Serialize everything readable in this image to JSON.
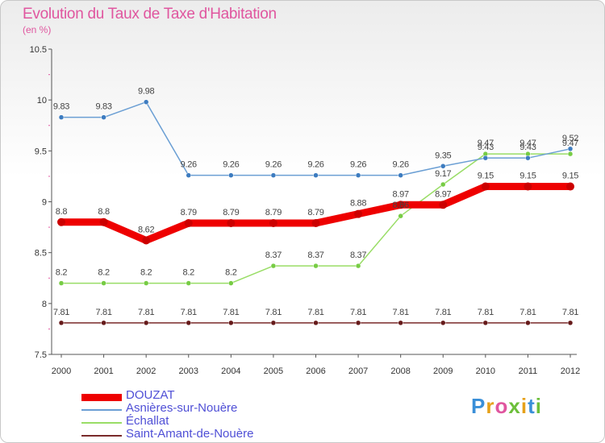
{
  "title": "Evolution du Taux de Taxe d'Habitation",
  "subtitle": "(en %)",
  "brand": "Proxiti",
  "colors": {
    "title": "#e0569f",
    "legend_text": "#4f4fd6"
  },
  "chart_data": {
    "type": "line",
    "x": [
      "2000",
      "2001",
      "2002",
      "2003",
      "2004",
      "2005",
      "2006",
      "2007",
      "2008",
      "2009",
      "2010",
      "2011",
      "2012"
    ],
    "ylim": [
      7.5,
      10.5
    ],
    "yticks": [
      "7.5",
      "8",
      "8.5",
      "9",
      "9.5",
      "10",
      "10.5"
    ],
    "grid": false,
    "legend_position": "bottom-left",
    "series": [
      {
        "name": "DOUZAT",
        "color": "#ee0000",
        "point_color": "#cc0000",
        "values": [
          8.8,
          8.8,
          8.62,
          8.79,
          8.79,
          8.79,
          8.79,
          8.88,
          8.97,
          8.97,
          9.15,
          9.15,
          9.15
        ],
        "labels": [
          "8.8",
          "8.8",
          "8.62",
          "8.79",
          "8.79",
          "8.79",
          "8.79",
          "8.88",
          "8.97",
          "8.97",
          "9.15",
          "9.15",
          "9.15"
        ]
      },
      {
        "name": "Asnières-sur-Nouère",
        "color": "#6b9fd4",
        "point_color": "#3d7cc0",
        "values": [
          9.83,
          9.83,
          9.98,
          9.26,
          9.26,
          9.26,
          9.26,
          9.26,
          9.26,
          9.35,
          9.43,
          9.43,
          9.52
        ],
        "labels": [
          "9.83",
          "9.83",
          "9.98",
          "9.26",
          "9.26",
          "9.26",
          "9.26",
          "9.26",
          "9.26",
          "9.35",
          "9.43",
          "9.43",
          "9.52"
        ]
      },
      {
        "name": "Échallat",
        "color": "#99dd66",
        "point_color": "#77cc44",
        "values": [
          8.2,
          8.2,
          8.2,
          8.2,
          8.2,
          8.37,
          8.37,
          8.37,
          8.86,
          9.17,
          9.47,
          9.47,
          9.47
        ],
        "labels": [
          "8.2",
          "8.2",
          "8.2",
          "8.2",
          "8.2",
          "8.37",
          "8.37",
          "8.37",
          "8.86",
          "9.17",
          "9.47",
          "9.47",
          "9.47"
        ]
      },
      {
        "name": "Saint-Amant-de-Nouère",
        "color": "#7a2a2a",
        "point_color": "#661a1a",
        "values": [
          7.81,
          7.81,
          7.81,
          7.81,
          7.81,
          7.81,
          7.81,
          7.81,
          7.81,
          7.81,
          7.81,
          7.81,
          7.81
        ],
        "labels": [
          "7.81",
          "7.81",
          "7.81",
          "7.81",
          "7.81",
          "7.81",
          "7.81",
          "7.81",
          "7.81",
          "7.81",
          "7.81",
          "7.81",
          "7.81"
        ]
      }
    ]
  }
}
